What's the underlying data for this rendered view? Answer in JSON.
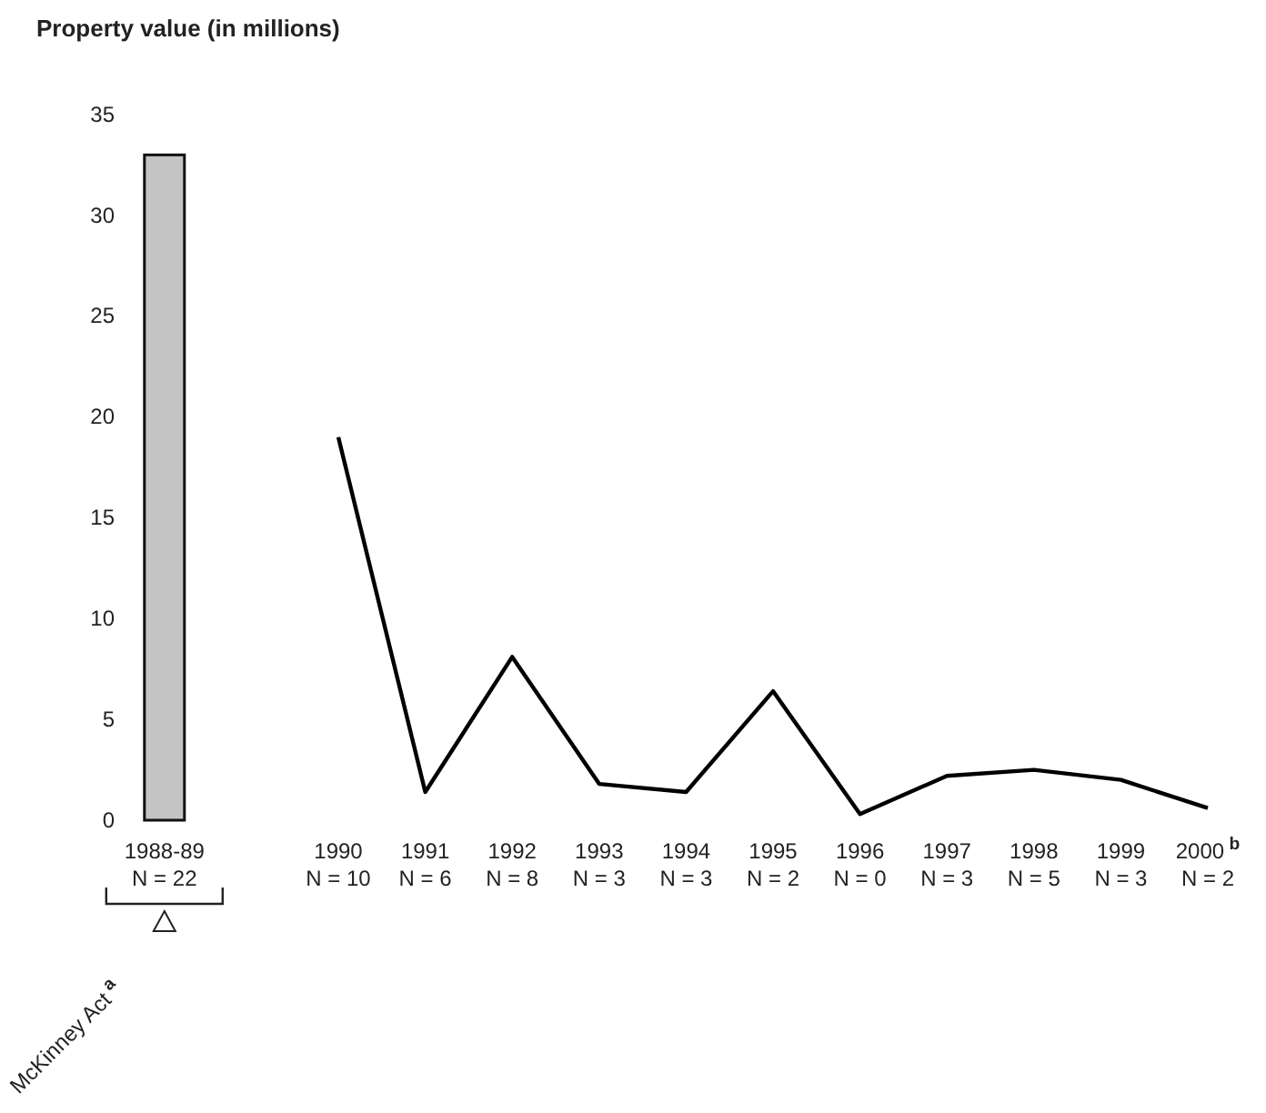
{
  "chart_data": {
    "type": "line",
    "ylabel": "Property value (in millions)",
    "categories": [
      "1988-89\nN = 22",
      "1990\nN = 10",
      "1991\nN = 6",
      "1992\nN = 8",
      "1993\nN = 3",
      "1994\nN = 3",
      "1995\nN = 2",
      "1996\nN = 0",
      "1997\nN = 3",
      "1998\nN = 5",
      "1999\nN = 3",
      "2000$^{b}$\nN = 2"
    ],
    "series": [
      {
        "type": "bar",
        "color": "#c4c4c4",
        "values": [
          33,
          null,
          null,
          null,
          null,
          null,
          null,
          null,
          null,
          null,
          null,
          null
        ]
      },
      {
        "type": "line",
        "color": "#000000",
        "values": [
          null,
          19,
          1.4,
          8.1,
          1.8,
          1.4,
          6.4,
          0.3,
          2.2,
          2.5,
          2.0,
          0.6
        ]
      }
    ],
    "ylim": [
      0,
      35
    ],
    "yticks": [
      0,
      5,
      10,
      15,
      20,
      25,
      30,
      35
    ],
    "annotations": [
      "McKinney Act$^{a}$"
    ],
    "grid": false
  }
}
